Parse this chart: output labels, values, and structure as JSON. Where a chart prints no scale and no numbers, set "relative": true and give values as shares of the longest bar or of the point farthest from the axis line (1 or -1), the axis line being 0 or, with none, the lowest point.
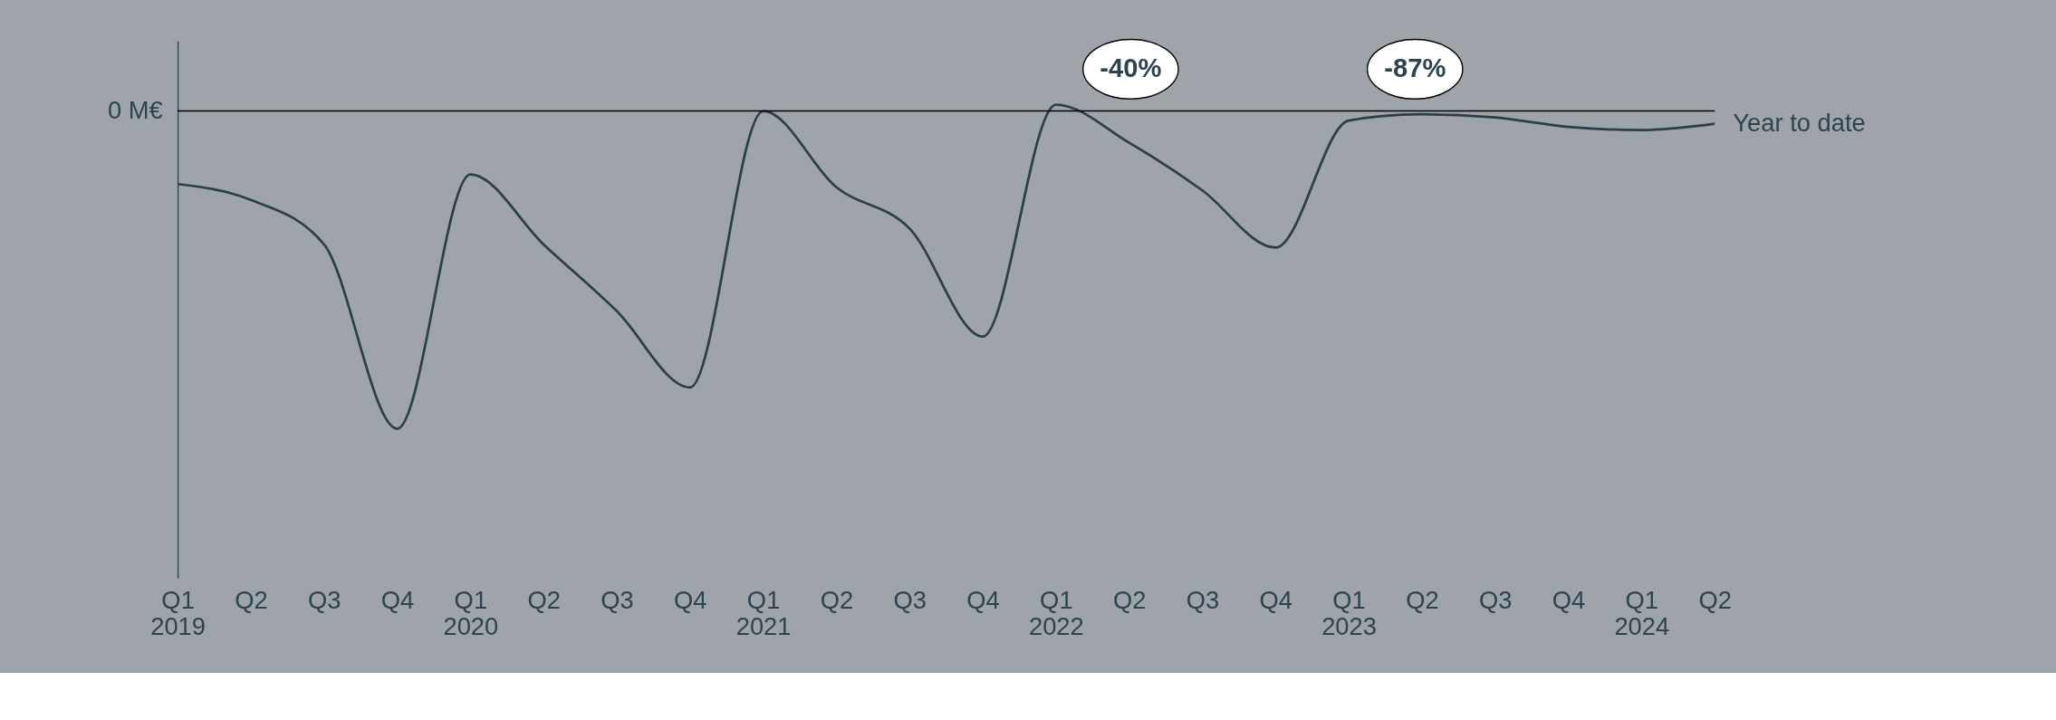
{
  "chart_data": {
    "type": "line",
    "relative": true,
    "categories": [
      "Q1 2019",
      "Q2",
      "Q3",
      "Q4",
      "Q1 2020",
      "Q2",
      "Q3",
      "Q4",
      "Q1 2021",
      "Q2",
      "Q3",
      "Q4",
      "Q1 2022",
      "Q2",
      "Q3",
      "Q4",
      "Q1 2023",
      "Q2",
      "Q3",
      "Q4",
      "Q1 2024",
      "Q2"
    ],
    "series": [
      {
        "name": "Year to date",
        "color": "#2a3f4a",
        "values": [
          -0.23,
          -0.28,
          -0.42,
          -1,
          -0.2,
          -0.42,
          -0.63,
          -0.87,
          0,
          -0.24,
          -0.37,
          -0.71,
          0.02,
          -0.1,
          -0.25,
          -0.43,
          -0.03,
          -0.01,
          -0.02,
          -0.05,
          -0.06,
          -0.04
        ]
      }
    ],
    "ref_lines": [
      {
        "axis": "y",
        "value": 0,
        "label": "0 M€",
        "color": "#000000"
      }
    ],
    "annotations": [
      "-40%",
      "-87%"
    ],
    "grid": false,
    "marker": "none",
    "line_style": "solid"
  }
}
